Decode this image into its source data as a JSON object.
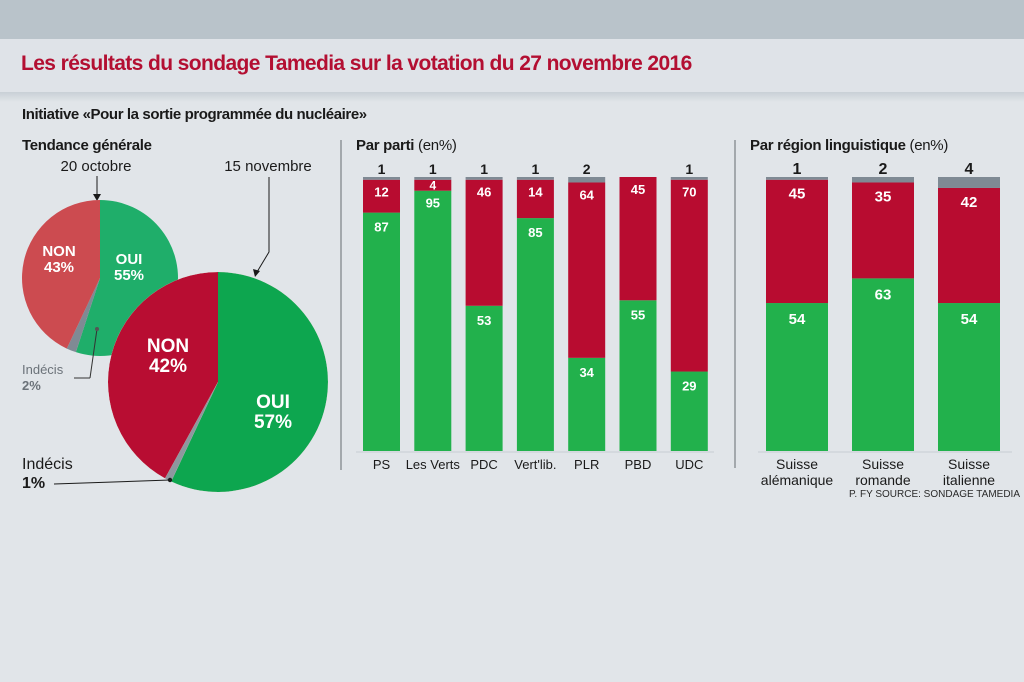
{
  "header": {
    "title": "Les résultats du sondage Tamedia sur la votation du 27 novembre 2016",
    "subtitle": "Initiative «Pour la sortie programmée du nucléaire»"
  },
  "colors": {
    "oui": "#22b14c",
    "non": "#b80c30",
    "indecis": "#7f8a94",
    "oui_light": "#1fae6a",
    "non_light": "#cc4b50",
    "oui_pie": "#0fa650",
    "title": "#b30f32"
  },
  "source": "P. FY SOURCE: SONDAGE TAMEDIA",
  "chart_data": [
    {
      "type": "pie",
      "title": "Tendance générale",
      "date_label": "20 octobre",
      "slices": [
        {
          "name": "OUI",
          "label": "OUI",
          "value": 55,
          "pct_label": "55%"
        },
        {
          "name": "Indécis",
          "label": "Indécis",
          "value": 2,
          "pct_label": "2%"
        },
        {
          "name": "NON",
          "label": "NON",
          "value": 43,
          "pct_label": "43%"
        }
      ]
    },
    {
      "type": "pie",
      "title": "Tendance générale",
      "date_label": "15 novembre",
      "slices": [
        {
          "name": "OUI",
          "label": "OUI",
          "value": 57,
          "pct_label": "57%"
        },
        {
          "name": "Indécis",
          "label": "Indécis",
          "value": 1,
          "pct_label": "1%"
        },
        {
          "name": "NON",
          "label": "NON",
          "value": 42,
          "pct_label": "42%"
        }
      ]
    },
    {
      "type": "bar",
      "stacked": true,
      "title": "Par parti",
      "unit": "(en%)",
      "categories": [
        "PS",
        "Les Verts",
        "PDC",
        "Vert'lib.",
        "PLR",
        "PBD",
        "UDC"
      ],
      "series": [
        {
          "name": "OUI",
          "values": [
            87,
            95,
            53,
            85,
            34,
            55,
            29
          ]
        },
        {
          "name": "NON",
          "values": [
            12,
            4,
            46,
            14,
            64,
            45,
            70
          ]
        },
        {
          "name": "Indécis",
          "values": [
            1,
            1,
            1,
            1,
            2,
            0,
            1
          ]
        }
      ],
      "indecis_labels": [
        "1",
        "1",
        "1",
        "1",
        "2",
        "",
        "1"
      ],
      "ylim": [
        0,
        100
      ]
    },
    {
      "type": "bar",
      "stacked": true,
      "title": "Par région linguistique",
      "unit": "(en%)",
      "categories": [
        [
          "Suisse",
          "alémanique"
        ],
        [
          "Suisse",
          "romande"
        ],
        [
          "Suisse",
          "italienne"
        ]
      ],
      "series": [
        {
          "name": "OUI",
          "values": [
            54,
            63,
            54
          ]
        },
        {
          "name": "NON",
          "values": [
            45,
            35,
            42
          ]
        },
        {
          "name": "Indécis",
          "values": [
            1,
            2,
            4
          ]
        }
      ],
      "indecis_labels": [
        "1",
        "2",
        "4"
      ],
      "ylim": [
        0,
        100
      ]
    }
  ]
}
